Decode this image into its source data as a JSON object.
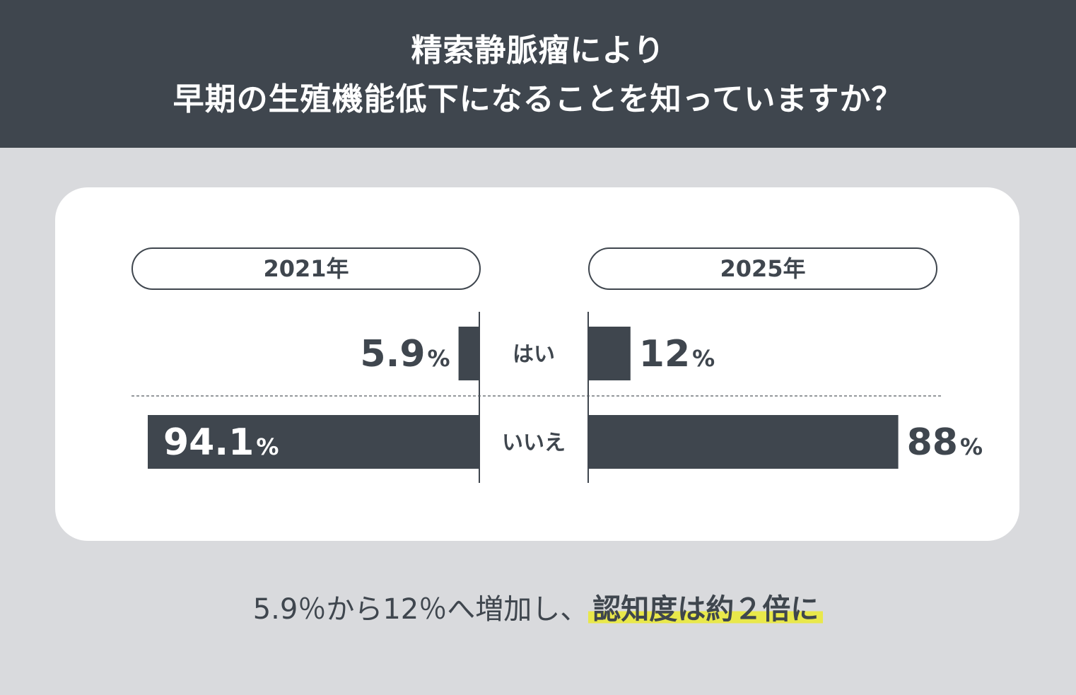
{
  "header": {
    "title_line1": "精索静脈瘤により",
    "title_line2": "早期の生殖機能低下になることを知っていますか？"
  },
  "colors": {
    "header_bg": "#3f464e",
    "bar": "#3f464e",
    "page_bg": "#d9dadd",
    "card_bg": "#ffffff",
    "highlight": "#e9e84a"
  },
  "years": {
    "left": "2021年",
    "right": "2025年"
  },
  "chart_data": {
    "type": "bar",
    "orientation": "horizontal-butterfly",
    "categories": [
      "はい",
      "いいえ"
    ],
    "series": [
      {
        "name": "2021年",
        "values": [
          5.9,
          94.1
        ],
        "labels": [
          "5.9",
          "94.1"
        ]
      },
      {
        "name": "2025年",
        "values": [
          12,
          88
        ],
        "labels": [
          "12",
          "88"
        ]
      }
    ],
    "unit": "%",
    "xlim": [
      0,
      100
    ]
  },
  "footer": {
    "plain": "5.9％から12％へ増加し、",
    "highlight": "認知度は約２倍に"
  }
}
